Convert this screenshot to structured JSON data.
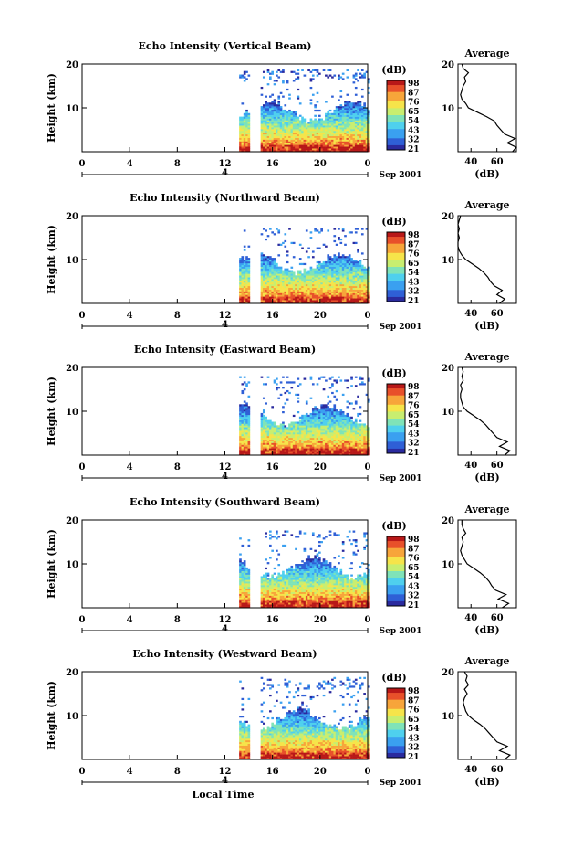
{
  "chart_data": [
    {
      "type": "heatmap",
      "title": "Echo Intensity (Vertical Beam)",
      "ylabel": "Height (km)",
      "ylim": [
        0,
        20
      ],
      "yticks": [
        "20",
        "10"
      ],
      "xticks": [
        "0",
        "4",
        "8",
        "12",
        "16",
        "20",
        "0"
      ],
      "xlim": [
        0,
        24
      ],
      "day_label": "4",
      "date_label": "Sep 2001",
      "data_gap_hours": [
        14.0,
        14.9
      ],
      "data_start_hour": 13.2,
      "echo_top_km": 18.5,
      "colorbar": {
        "title": "(dB)",
        "ticks": [
          "98",
          "87",
          "76",
          "65",
          "54",
          "43",
          "32",
          "21"
        ]
      },
      "profile": {
        "title": "Average",
        "xlabel": "(dB)",
        "xticks": [
          "40",
          "60"
        ],
        "yticks": [
          "20",
          "10"
        ],
        "heights_km": [
          0,
          1,
          2,
          3,
          4,
          5,
          6,
          7,
          8,
          9,
          10,
          11,
          12,
          13,
          14,
          15,
          16,
          17,
          18,
          19,
          20
        ],
        "values_db": [
          72,
          75,
          68,
          74,
          66,
          63,
          60,
          58,
          52,
          45,
          38,
          36,
          33,
          32,
          33,
          34,
          36,
          35,
          38,
          34,
          33
        ]
      }
    },
    {
      "type": "heatmap",
      "title": "Echo Intensity (Northward Beam)",
      "ylabel": "Height (km)",
      "ylim": [
        0,
        20
      ],
      "yticks": [
        "20",
        "10"
      ],
      "xticks": [
        "0",
        "4",
        "8",
        "12",
        "16",
        "20",
        "0"
      ],
      "xlim": [
        0,
        24
      ],
      "day_label": "4",
      "date_label": "Sep 2001",
      "data_gap_hours": [
        14.0,
        14.9
      ],
      "data_start_hour": 13.2,
      "echo_top_km": 17.0,
      "colorbar": {
        "title": "(dB)",
        "ticks": [
          "98",
          "87",
          "76",
          "65",
          "54",
          "43",
          "32",
          "21"
        ]
      },
      "profile": {
        "title": "Average",
        "xlabel": "(dB)",
        "xticks": [
          "40",
          "60"
        ],
        "yticks": [
          "20",
          "10"
        ],
        "heights_km": [
          0,
          1,
          2,
          3,
          4,
          5,
          6,
          7,
          8,
          9,
          10,
          11,
          12,
          13,
          14,
          15,
          16,
          17,
          18,
          19,
          20
        ],
        "values_db": [
          62,
          66,
          60,
          64,
          58,
          55,
          53,
          50,
          46,
          41,
          36,
          33,
          31,
          30,
          30,
          31,
          30,
          31,
          30,
          31,
          32
        ]
      }
    },
    {
      "type": "heatmap",
      "title": "Echo Intensity (Eastward Beam)",
      "ylabel": "Height (km)",
      "ylim": [
        0,
        20
      ],
      "yticks": [
        "20",
        "10"
      ],
      "xticks": [
        "0",
        "4",
        "8",
        "12",
        "16",
        "20",
        "0"
      ],
      "xlim": [
        0,
        24
      ],
      "day_label": "4",
      "date_label": "Sep 2001",
      "data_gap_hours": [
        14.0,
        14.9
      ],
      "data_start_hour": 13.2,
      "echo_top_km": 18.0,
      "colorbar": {
        "title": "(dB)",
        "ticks": [
          "98",
          "87",
          "76",
          "65",
          "54",
          "43",
          "32",
          "21"
        ]
      },
      "profile": {
        "title": "Average",
        "xlabel": "(dB)",
        "xticks": [
          "40",
          "60"
        ],
        "yticks": [
          "20",
          "10"
        ],
        "heights_km": [
          0,
          1,
          2,
          3,
          4,
          5,
          6,
          7,
          8,
          9,
          10,
          11,
          12,
          13,
          14,
          15,
          16,
          17,
          18,
          19,
          20
        ],
        "values_db": [
          66,
          70,
          62,
          68,
          60,
          57,
          54,
          51,
          47,
          42,
          37,
          34,
          33,
          32,
          32,
          33,
          32,
          34,
          33,
          34,
          33
        ]
      }
    },
    {
      "type": "heatmap",
      "title": "Echo Intensity (Southward Beam)",
      "ylabel": "Height (km)",
      "ylim": [
        0,
        20
      ],
      "yticks": [
        "20",
        "10"
      ],
      "xticks": [
        "0",
        "4",
        "8",
        "12",
        "16",
        "20",
        "0"
      ],
      "xlim": [
        0,
        24
      ],
      "day_label": "4",
      "date_label": "Sep 2001",
      "data_gap_hours": [
        14.0,
        14.9
      ],
      "data_start_hour": 13.2,
      "echo_top_km": 17.5,
      "colorbar": {
        "title": "(dB)",
        "ticks": [
          "98",
          "87",
          "76",
          "65",
          "54",
          "43",
          "32",
          "21"
        ]
      },
      "profile": {
        "title": "Average",
        "xlabel": "(dB)",
        "xticks": [
          "40",
          "60"
        ],
        "yticks": [
          "20",
          "10"
        ],
        "heights_km": [
          0,
          1,
          2,
          3,
          4,
          5,
          6,
          7,
          8,
          9,
          10,
          11,
          12,
          13,
          14,
          15,
          16,
          17,
          18,
          19,
          20
        ],
        "values_db": [
          64,
          69,
          61,
          67,
          59,
          56,
          54,
          51,
          47,
          42,
          37,
          35,
          33,
          32,
          33,
          34,
          33,
          36,
          34,
          33,
          33
        ]
      }
    },
    {
      "type": "heatmap",
      "title": "Echo Intensity (Westward Beam)",
      "ylabel": "Height (km)",
      "ylim": [
        0,
        20
      ],
      "yticks": [
        "20",
        "10"
      ],
      "xticks": [
        "0",
        "4",
        "8",
        "12",
        "16",
        "20",
        "0"
      ],
      "xlim": [
        0,
        24
      ],
      "day_label": "4",
      "date_label": "Sep 2001",
      "data_gap_hours": [
        14.0,
        14.9
      ],
      "data_start_hour": 13.2,
      "echo_top_km": 18.5,
      "xlabel": "Local Time",
      "colorbar": {
        "title": "(dB)",
        "ticks": [
          "98",
          "87",
          "76",
          "65",
          "54",
          "43",
          "32",
          "21"
        ]
      },
      "profile": {
        "title": "Average",
        "xlabel": "(dB)",
        "xticks": [
          "40",
          "60"
        ],
        "yticks": [
          "20",
          "10"
        ],
        "heights_km": [
          0,
          1,
          2,
          3,
          4,
          5,
          6,
          7,
          8,
          9,
          10,
          11,
          12,
          13,
          14,
          15,
          16,
          17,
          18,
          19,
          20
        ],
        "values_db": [
          66,
          70,
          62,
          68,
          60,
          57,
          54,
          51,
          47,
          42,
          38,
          36,
          35,
          34,
          35,
          37,
          35,
          38,
          36,
          37,
          35
        ]
      }
    }
  ],
  "colormap": [
    "#ffffff",
    "#2a2a9e",
    "#2f5fd6",
    "#3aa0f0",
    "#4fd0ee",
    "#7fe3b8",
    "#c8ee70",
    "#f6e44a",
    "#f7a53a",
    "#e8502a",
    "#b81818"
  ]
}
